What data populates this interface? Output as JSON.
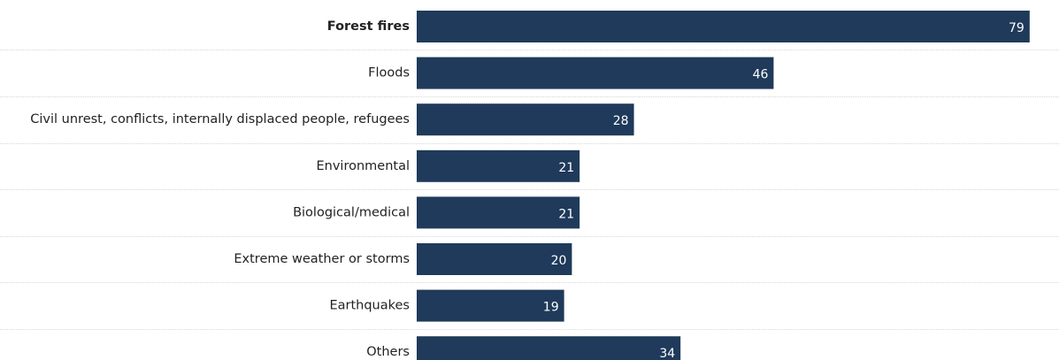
{
  "colors": {
    "bar": "#1f3a5a",
    "label_text": "#222222",
    "value_text": "#ffffff",
    "separator": "#d6d6d6",
    "background": "#ffffff"
  },
  "chart_data": {
    "type": "bar",
    "orientation": "horizontal",
    "title": "",
    "xlabel": "",
    "ylabel": "",
    "xlim": [
      0,
      80
    ],
    "grid": false,
    "legend": "none",
    "highlighted_category": "Forest fires",
    "categories": [
      "Forest fires",
      "Floods",
      "Civil unrest, conflicts, internally displaced people, refugees",
      "Environmental",
      "Biological/medical",
      "Extreme weather or storms",
      "Earthquakes",
      "Others"
    ],
    "values": [
      79,
      46,
      28,
      21,
      21,
      20,
      19,
      34
    ]
  }
}
